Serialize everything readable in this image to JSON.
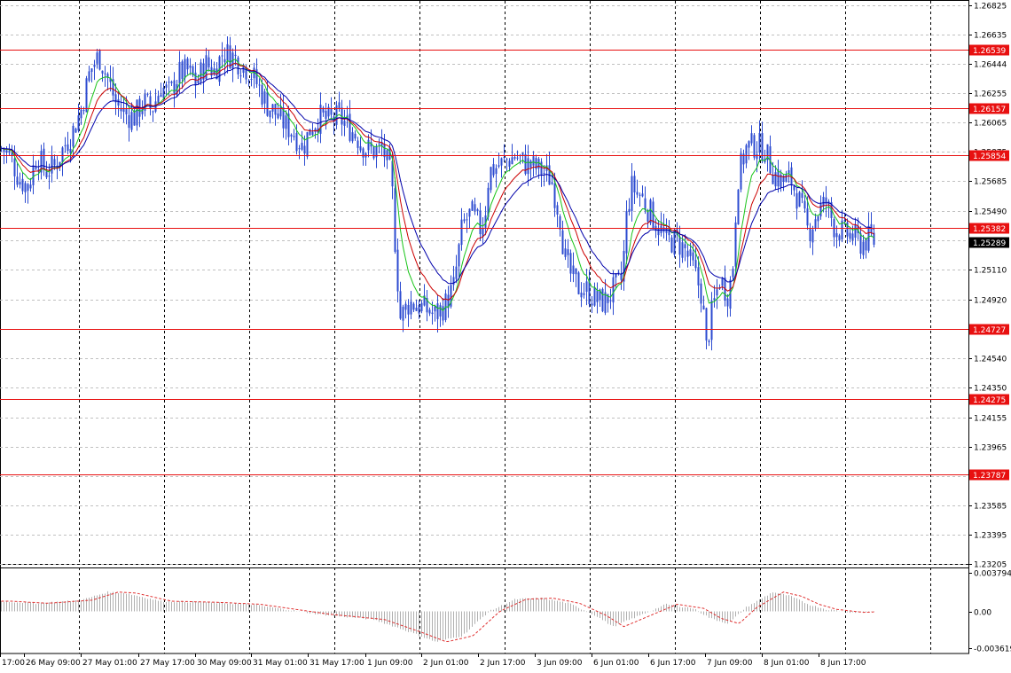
{
  "chart_data": {
    "type": "candlestick",
    "colors": {
      "candle": "#2c4bd0",
      "ma_fast": "#18c418",
      "ma_mid": "#cc0000",
      "ma_slow": "#0000aa",
      "level_line": "#e81010",
      "level_label_bg": "#e81010",
      "grid": "#c0c0c0",
      "vline": "#000000",
      "osc_line": "#e03030",
      "osc_hist": "#b0b0b0",
      "current_bg": "#000000"
    },
    "price_axis": {
      "ylim": [
        1.23205,
        1.26825
      ],
      "ticks": [
        "1.26825",
        "1.26635",
        "1.26444",
        "1.26255",
        "1.26065",
        "1.25875",
        "1.25685",
        "1.25490",
        "1.25300",
        "1.25110",
        "1.24920",
        "1.24730",
        "1.24540",
        "1.24350",
        "1.24155",
        "1.23965",
        "1.23775",
        "1.23585",
        "1.23395",
        "1.23205"
      ]
    },
    "horizontal_levels": [
      "1.26539",
      "1.26157",
      "1.25854",
      "1.25382",
      "1.24727",
      "1.24275",
      "1.23787"
    ],
    "current_price": "1.25289",
    "osc_axis": {
      "ylim": [
        -0.003619,
        0.003794
      ],
      "ticks": [
        "0.003794",
        "0.00",
        "-0.003619"
      ]
    },
    "time_labels": [
      "17:00",
      "26 May 09:00",
      "27 May 01:00",
      "27 May 17:00",
      "30 May 09:00",
      "31 May 01:00",
      "31 May 17:00",
      "1 Jun 09:00",
      "2 Jun 01:00",
      "2 Jun 17:00",
      "3 Jun 09:00",
      "6 Jun 01:00",
      "6 Jun 17:00",
      "7 Jun 09:00",
      "8 Jun 01:00",
      "8 Jun 17:00"
    ],
    "close_anchors": [
      [
        0,
        1.259
      ],
      [
        10,
        1.2585
      ],
      [
        20,
        1.257
      ],
      [
        30,
        1.2565
      ],
      [
        40,
        1.2585
      ],
      [
        50,
        1.2575
      ],
      [
        60,
        1.2578
      ],
      [
        70,
        1.259
      ],
      [
        80,
        1.26
      ],
      [
        90,
        1.2615
      ],
      [
        100,
        1.264
      ],
      [
        110,
        1.265
      ],
      [
        120,
        1.2635
      ],
      [
        130,
        1.2618
      ],
      [
        140,
        1.2612
      ],
      [
        150,
        1.261
      ],
      [
        160,
        1.262
      ],
      [
        170,
        1.2615
      ],
      [
        180,
        1.263
      ],
      [
        190,
        1.2625
      ],
      [
        200,
        1.2638
      ],
      [
        210,
        1.264
      ],
      [
        220,
        1.2632
      ],
      [
        230,
        1.2645
      ],
      [
        240,
        1.264
      ],
      [
        250,
        1.2652
      ],
      [
        260,
        1.265
      ],
      [
        270,
        1.2645
      ],
      [
        280,
        1.264
      ],
      [
        290,
        1.263
      ],
      [
        300,
        1.2618
      ],
      [
        310,
        1.2612
      ],
      [
        320,
        1.2605
      ],
      [
        330,
        1.26
      ],
      [
        340,
        1.259
      ],
      [
        350,
        1.2605
      ],
      [
        360,
        1.261
      ],
      [
        370,
        1.2608
      ],
      [
        380,
        1.261
      ],
      [
        390,
        1.2605
      ],
      [
        400,
        1.2598
      ],
      [
        410,
        1.259
      ],
      [
        420,
        1.2588
      ],
      [
        430,
        1.259
      ],
      [
        440,
        1.257
      ],
      [
        445,
        1.252
      ],
      [
        450,
        1.248
      ],
      [
        460,
        1.249
      ],
      [
        470,
        1.2488
      ],
      [
        480,
        1.2485
      ],
      [
        490,
        1.2482
      ],
      [
        500,
        1.2488
      ],
      [
        510,
        1.25
      ],
      [
        515,
        1.252
      ],
      [
        520,
        1.254
      ],
      [
        530,
        1.2548
      ],
      [
        540,
        1.2538
      ],
      [
        545,
        1.2545
      ],
      [
        550,
        1.2575
      ],
      [
        560,
        1.2578
      ],
      [
        570,
        1.2582
      ],
      [
        580,
        1.2585
      ],
      [
        590,
        1.258
      ],
      [
        600,
        1.2578
      ],
      [
        610,
        1.2575
      ],
      [
        620,
        1.257
      ],
      [
        630,
        1.2545
      ],
      [
        635,
        1.252
      ],
      [
        640,
        1.251
      ],
      [
        650,
        1.25
      ],
      [
        660,
        1.2498
      ],
      [
        670,
        1.2492
      ],
      [
        680,
        1.249
      ],
      [
        690,
        1.2498
      ],
      [
        700,
        1.2505
      ],
      [
        705,
        1.2545
      ],
      [
        710,
        1.2565
      ],
      [
        720,
        1.256
      ],
      [
        730,
        1.255
      ],
      [
        740,
        1.254
      ],
      [
        750,
        1.253
      ],
      [
        760,
        1.253
      ],
      [
        770,
        1.2525
      ],
      [
        780,
        1.2512
      ],
      [
        790,
        1.2495
      ],
      [
        795,
        1.246
      ],
      [
        800,
        1.248
      ],
      [
        810,
        1.2505
      ],
      [
        820,
        1.2495
      ],
      [
        825,
        1.2515
      ],
      [
        830,
        1.257
      ],
      [
        840,
        1.259
      ],
      [
        850,
        1.2592
      ],
      [
        860,
        1.259
      ],
      [
        870,
        1.2575
      ],
      [
        880,
        1.2568
      ],
      [
        890,
        1.257
      ],
      [
        900,
        1.2555
      ],
      [
        910,
        1.2535
      ],
      [
        920,
        1.2548
      ],
      [
        930,
        1.2555
      ],
      [
        940,
        1.2538
      ],
      [
        950,
        1.2535
      ],
      [
        960,
        1.2533
      ],
      [
        970,
        1.2528
      ],
      [
        980,
        1.2532
      ],
      [
        985,
        1.2529
      ]
    ],
    "oscillator_anchors": [
      [
        0,
        0.001
      ],
      [
        40,
        0.0008
      ],
      [
        90,
        0.0011
      ],
      [
        120,
        0.0019
      ],
      [
        140,
        0.0018
      ],
      [
        180,
        0.001
      ],
      [
        230,
        0.0009
      ],
      [
        280,
        0.0007
      ],
      [
        320,
        0.0002
      ],
      [
        360,
        -0.0003
      ],
      [
        420,
        -0.0008
      ],
      [
        460,
        -0.002
      ],
      [
        490,
        -0.003
      ],
      [
        520,
        -0.0024
      ],
      [
        550,
        0.0
      ],
      [
        580,
        0.0012
      ],
      [
        610,
        0.0013
      ],
      [
        640,
        0.0008
      ],
      [
        670,
        -0.0004
      ],
      [
        690,
        -0.0015
      ],
      [
        720,
        -0.0004
      ],
      [
        750,
        0.0007
      ],
      [
        780,
        0.0003
      ],
      [
        800,
        -0.0007
      ],
      [
        820,
        -0.0012
      ],
      [
        840,
        0.0004
      ],
      [
        870,
        0.0019
      ],
      [
        890,
        0.0015
      ],
      [
        910,
        0.0007
      ],
      [
        930,
        0.0002
      ],
      [
        960,
        -0.0001
      ],
      [
        985,
        0.0
      ]
    ]
  }
}
